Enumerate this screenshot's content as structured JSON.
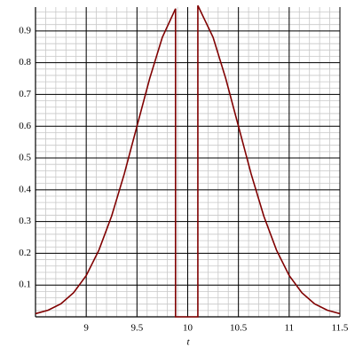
{
  "chart_data": {
    "type": "line",
    "x_label": "t",
    "x": [
      8.5,
      8.625,
      8.75,
      8.875,
      9,
      9.125,
      9.25,
      9.375,
      9.5,
      9.625,
      9.75,
      9.88,
      9.88,
      10.1,
      10.1,
      10.25,
      10.375,
      10.5,
      10.625,
      10.75,
      10.875,
      11,
      11.125,
      11.25,
      11.375,
      11.5
    ],
    "series": [
      {
        "color": "#800000",
        "values": [
          0.01,
          0.021,
          0.041,
          0.076,
          0.13,
          0.21,
          0.317,
          0.45,
          0.6,
          0.75,
          0.88,
          0.97,
          0,
          0,
          0.98,
          0.88,
          0.75,
          0.6,
          0.45,
          0.317,
          0.21,
          0.13,
          0.076,
          0.041,
          0.021,
          0.01
        ]
      }
    ],
    "xlim": [
      8.5,
      11.5
    ],
    "ylim": [
      0,
      0.975
    ],
    "xticks": [
      9,
      9.5,
      10,
      10.5,
      11,
      11.5
    ],
    "yticks": [
      0.1,
      0.2,
      0.3,
      0.4,
      0.5,
      0.6,
      0.7,
      0.8,
      0.9
    ],
    "grid": true
  }
}
